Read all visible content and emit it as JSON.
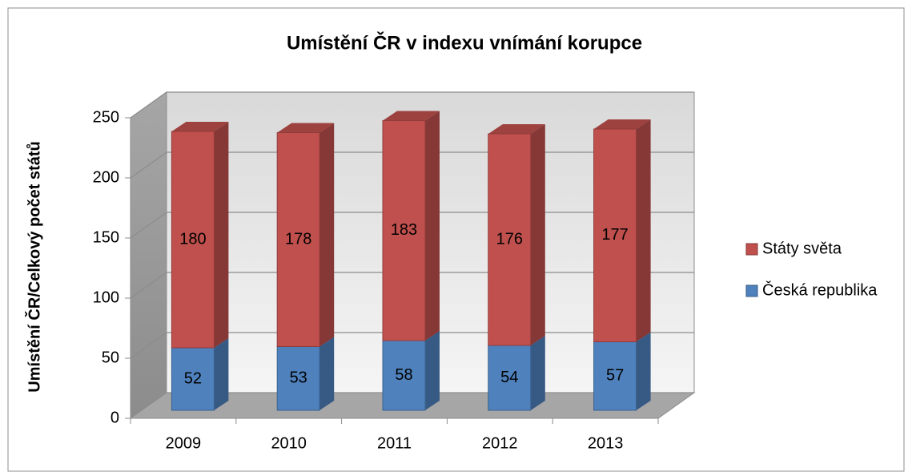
{
  "chart_data": {
    "type": "bar3d_stacked",
    "title": "Umístění ČR v indexu vnímání korupce",
    "y_label": "Umístění ČR/Celkový počet států",
    "categories": [
      "2009",
      "2010",
      "2011",
      "2012",
      "2013"
    ],
    "series": [
      {
        "name": "Česká republika",
        "color": "#4f81bd",
        "values": [
          52,
          53,
          58,
          54,
          57
        ]
      },
      {
        "name": "Státy světa",
        "color": "#c0504d",
        "values": [
          180,
          178,
          183,
          176,
          177
        ]
      }
    ],
    "ylim": [
      0,
      250
    ],
    "yticks": [
      0,
      50,
      100,
      150,
      200,
      250
    ],
    "grid": true,
    "legend": "right"
  }
}
